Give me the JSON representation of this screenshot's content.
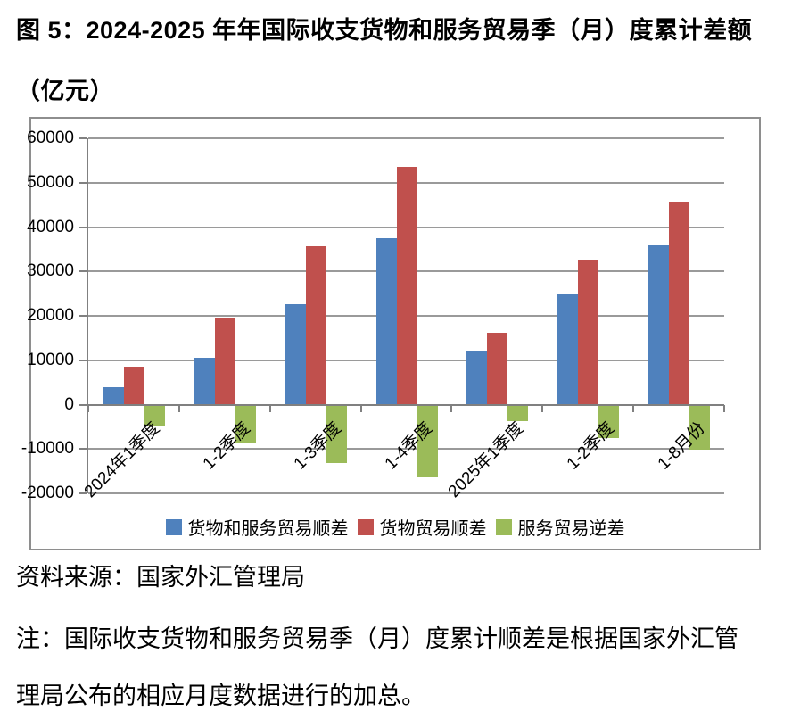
{
  "figure": {
    "title": "图 5：2024-2025 年年国际收支货物和服务贸易季（月）度累计差额（亿元）",
    "source": "资料来源：国家外汇管理局",
    "note": "注：国际收支货物和服务贸易季（月）度累计顺差是根据国家外汇管理局公布的相应月度数据进行的加总。"
  },
  "chart_data": {
    "type": "bar",
    "title": "2024-2025 年国际收支货物和服务贸易季（月）度累计差额",
    "unit": "亿元",
    "categories": [
      "2024年1季度",
      "1-2季度",
      "1-3季度",
      "1-4季度",
      "2025年1季度",
      "1-2季度",
      "1-8月份"
    ],
    "series": [
      {
        "name": "货物和服务贸易顺差",
        "color": "#4F81BD",
        "values": [
          4000,
          10600,
          22600,
          37400,
          12200,
          25100,
          35900
        ]
      },
      {
        "name": "货物贸易顺差",
        "color": "#C0504D",
        "values": [
          8600,
          19500,
          35700,
          53500,
          16200,
          32600,
          45700
        ]
      },
      {
        "name": "服务贸易逆差",
        "color": "#9BBB59",
        "values": [
          -4500,
          -8400,
          -13000,
          -16200,
          -3600,
          -7400,
          -10000
        ]
      }
    ],
    "xlabel": "",
    "ylabel": "",
    "ylim": [
      -20000,
      60000
    ],
    "ytick_step": 10000,
    "ytick_labels": [
      "60000",
      "50000",
      "40000",
      "30000",
      "20000",
      "10000",
      "0",
      "-10000",
      "-20000"
    ],
    "grid": true,
    "legend_position": "bottom",
    "gridline_color": "#9a9a9a",
    "axis_color": "#808080"
  }
}
